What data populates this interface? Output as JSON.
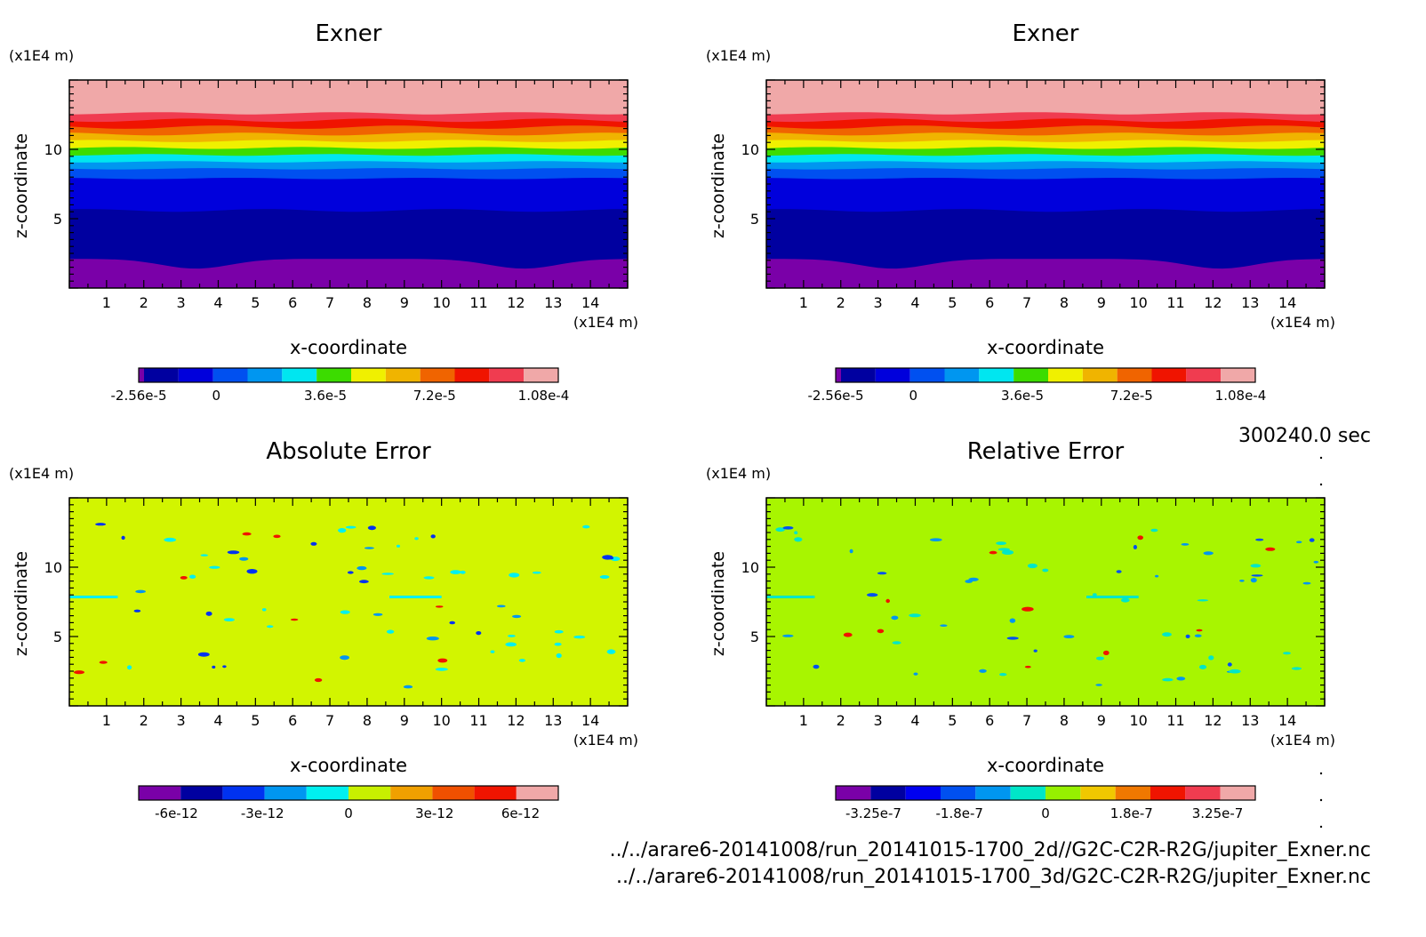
{
  "timestamp": "300240.0 sec",
  "files": [
    "../../arare6-20141008/run_20141015-1700_2d//G2C-C2R-R2G/jupiter_Exner.nc",
    "../../arare6-20141008/run_20141015-1700_3d/G2C-C2R-R2G/jupiter_Exner.nc"
  ],
  "chart_data": [
    {
      "type": "heatmap",
      "title": "Exner",
      "xlabel": "x-coordinate",
      "ylabel": "z-coordinate",
      "xunit": "(x1E4 m)",
      "yunit": "(x1E4 m)",
      "xlim": [
        0,
        15
      ],
      "ylim": [
        0,
        15
      ],
      "xticks": [
        "1",
        "2",
        "3",
        "4",
        "5",
        "6",
        "7",
        "8",
        "9",
        "10",
        "11",
        "12",
        "13",
        "14"
      ],
      "yticks": [
        "5",
        "10"
      ],
      "colorbar": {
        "colors": [
          "#7a00a8",
          "#0000a0",
          "#0000dc",
          "#0050f0",
          "#0096f0",
          "#00e6f0",
          "#3cdc00",
          "#f0f000",
          "#f0b400",
          "#f06400",
          "#f01400",
          "#f03c50",
          "#f0a8a8"
        ],
        "labels": [
          "-2.56e-5",
          "0",
          "3.6e-5",
          "7.2e-5",
          "1.08e-4"
        ]
      },
      "content": "layered"
    },
    {
      "type": "heatmap",
      "title": "Exner",
      "xlabel": "x-coordinate",
      "ylabel": "z-coordinate",
      "xunit": "(x1E4 m)",
      "yunit": "(x1E4 m)",
      "xlim": [
        0,
        15
      ],
      "ylim": [
        0,
        15
      ],
      "xticks": [
        "1",
        "2",
        "3",
        "4",
        "5",
        "6",
        "7",
        "8",
        "9",
        "10",
        "11",
        "12",
        "13",
        "14"
      ],
      "yticks": [
        "5",
        "10"
      ],
      "colorbar": {
        "colors": [
          "#7a00a8",
          "#0000a0",
          "#0000dc",
          "#0050f0",
          "#0096f0",
          "#00e6f0",
          "#3cdc00",
          "#f0f000",
          "#f0b400",
          "#f06400",
          "#f01400",
          "#f03c50",
          "#f0a8a8"
        ],
        "labels": [
          "-2.56e-5",
          "0",
          "3.6e-5",
          "7.2e-5",
          "1.08e-4"
        ]
      },
      "content": "layered"
    },
    {
      "type": "heatmap",
      "title": "Absolute Error",
      "xlabel": "x-coordinate",
      "ylabel": "z-coordinate",
      "xunit": "(x1E4 m)",
      "yunit": "(x1E4 m)",
      "xlim": [
        0,
        15
      ],
      "ylim": [
        0,
        15
      ],
      "xticks": [
        "1",
        "2",
        "3",
        "4",
        "5",
        "6",
        "7",
        "8",
        "9",
        "10",
        "11",
        "12",
        "13",
        "14"
      ],
      "yticks": [
        "5",
        "10"
      ],
      "background": "#d2f500",
      "colorbar": {
        "colors": [
          "#7a00a8",
          "#0000a0",
          "#0032f0",
          "#0096f0",
          "#00f0f0",
          "#c8f000",
          "#f0a000",
          "#f05000",
          "#f01400",
          "#f0a8a8"
        ],
        "labels": [
          "-6e-12",
          "-3e-12",
          "0",
          "3e-12",
          "6e-12"
        ]
      },
      "content": "speckle"
    },
    {
      "type": "heatmap",
      "title": "Relative Error",
      "xlabel": "x-coordinate",
      "ylabel": "z-coordinate",
      "xunit": "(x1E4 m)",
      "yunit": "(x1E4 m)",
      "xlim": [
        0,
        15
      ],
      "ylim": [
        0,
        15
      ],
      "xticks": [
        "1",
        "2",
        "3",
        "4",
        "5",
        "6",
        "7",
        "8",
        "9",
        "10",
        "11",
        "12",
        "13",
        "14"
      ],
      "yticks": [
        "5",
        "10"
      ],
      "background": "#a8f500",
      "colorbar": {
        "colors": [
          "#7a00a8",
          "#0000a0",
          "#0000f0",
          "#0050f0",
          "#0096f0",
          "#00e6c8",
          "#96f000",
          "#f0c800",
          "#f07800",
          "#f01400",
          "#f03c50",
          "#f0a8a8"
        ],
        "labels": [
          "-3.25e-7",
          "-1.8e-7",
          "0",
          "1.8e-7",
          "3.25e-7"
        ]
      },
      "content": "speckle"
    }
  ]
}
